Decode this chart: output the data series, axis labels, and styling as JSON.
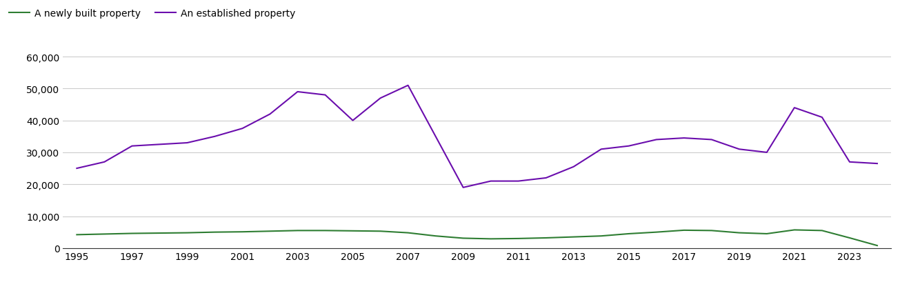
{
  "years": [
    1995,
    1996,
    1997,
    1998,
    1999,
    2000,
    2001,
    2002,
    2003,
    2004,
    2005,
    2006,
    2007,
    2008,
    2009,
    2010,
    2011,
    2012,
    2013,
    2014,
    2015,
    2016,
    2017,
    2018,
    2019,
    2020,
    2021,
    2022,
    2023,
    2024
  ],
  "newly_built": [
    4200,
    4400,
    4600,
    4700,
    4800,
    5000,
    5100,
    5300,
    5500,
    5500,
    5400,
    5300,
    4800,
    3800,
    3100,
    2900,
    3000,
    3200,
    3500,
    3800,
    4500,
    5000,
    5600,
    5500,
    4800,
    4500,
    5700,
    5500,
    3200,
    800
  ],
  "established": [
    25000,
    27000,
    32000,
    32500,
    33000,
    35000,
    37500,
    42000,
    49000,
    48000,
    40000,
    47000,
    51000,
    35000,
    19000,
    21000,
    21000,
    22000,
    25500,
    31000,
    32000,
    34000,
    34500,
    34000,
    31000,
    30000,
    44000,
    41000,
    27000,
    26500
  ],
  "newly_built_color": "#2e7d32",
  "established_color": "#6a0dad",
  "legend_labels": [
    "A newly built property",
    "An established property"
  ],
  "ylim": [
    0,
    62000
  ],
  "yticks": [
    0,
    10000,
    20000,
    30000,
    40000,
    50000,
    60000
  ],
  "background_color": "#ffffff",
  "grid_color": "#cccccc",
  "line_width": 1.5,
  "tick_fontsize": 10,
  "legend_fontsize": 10
}
